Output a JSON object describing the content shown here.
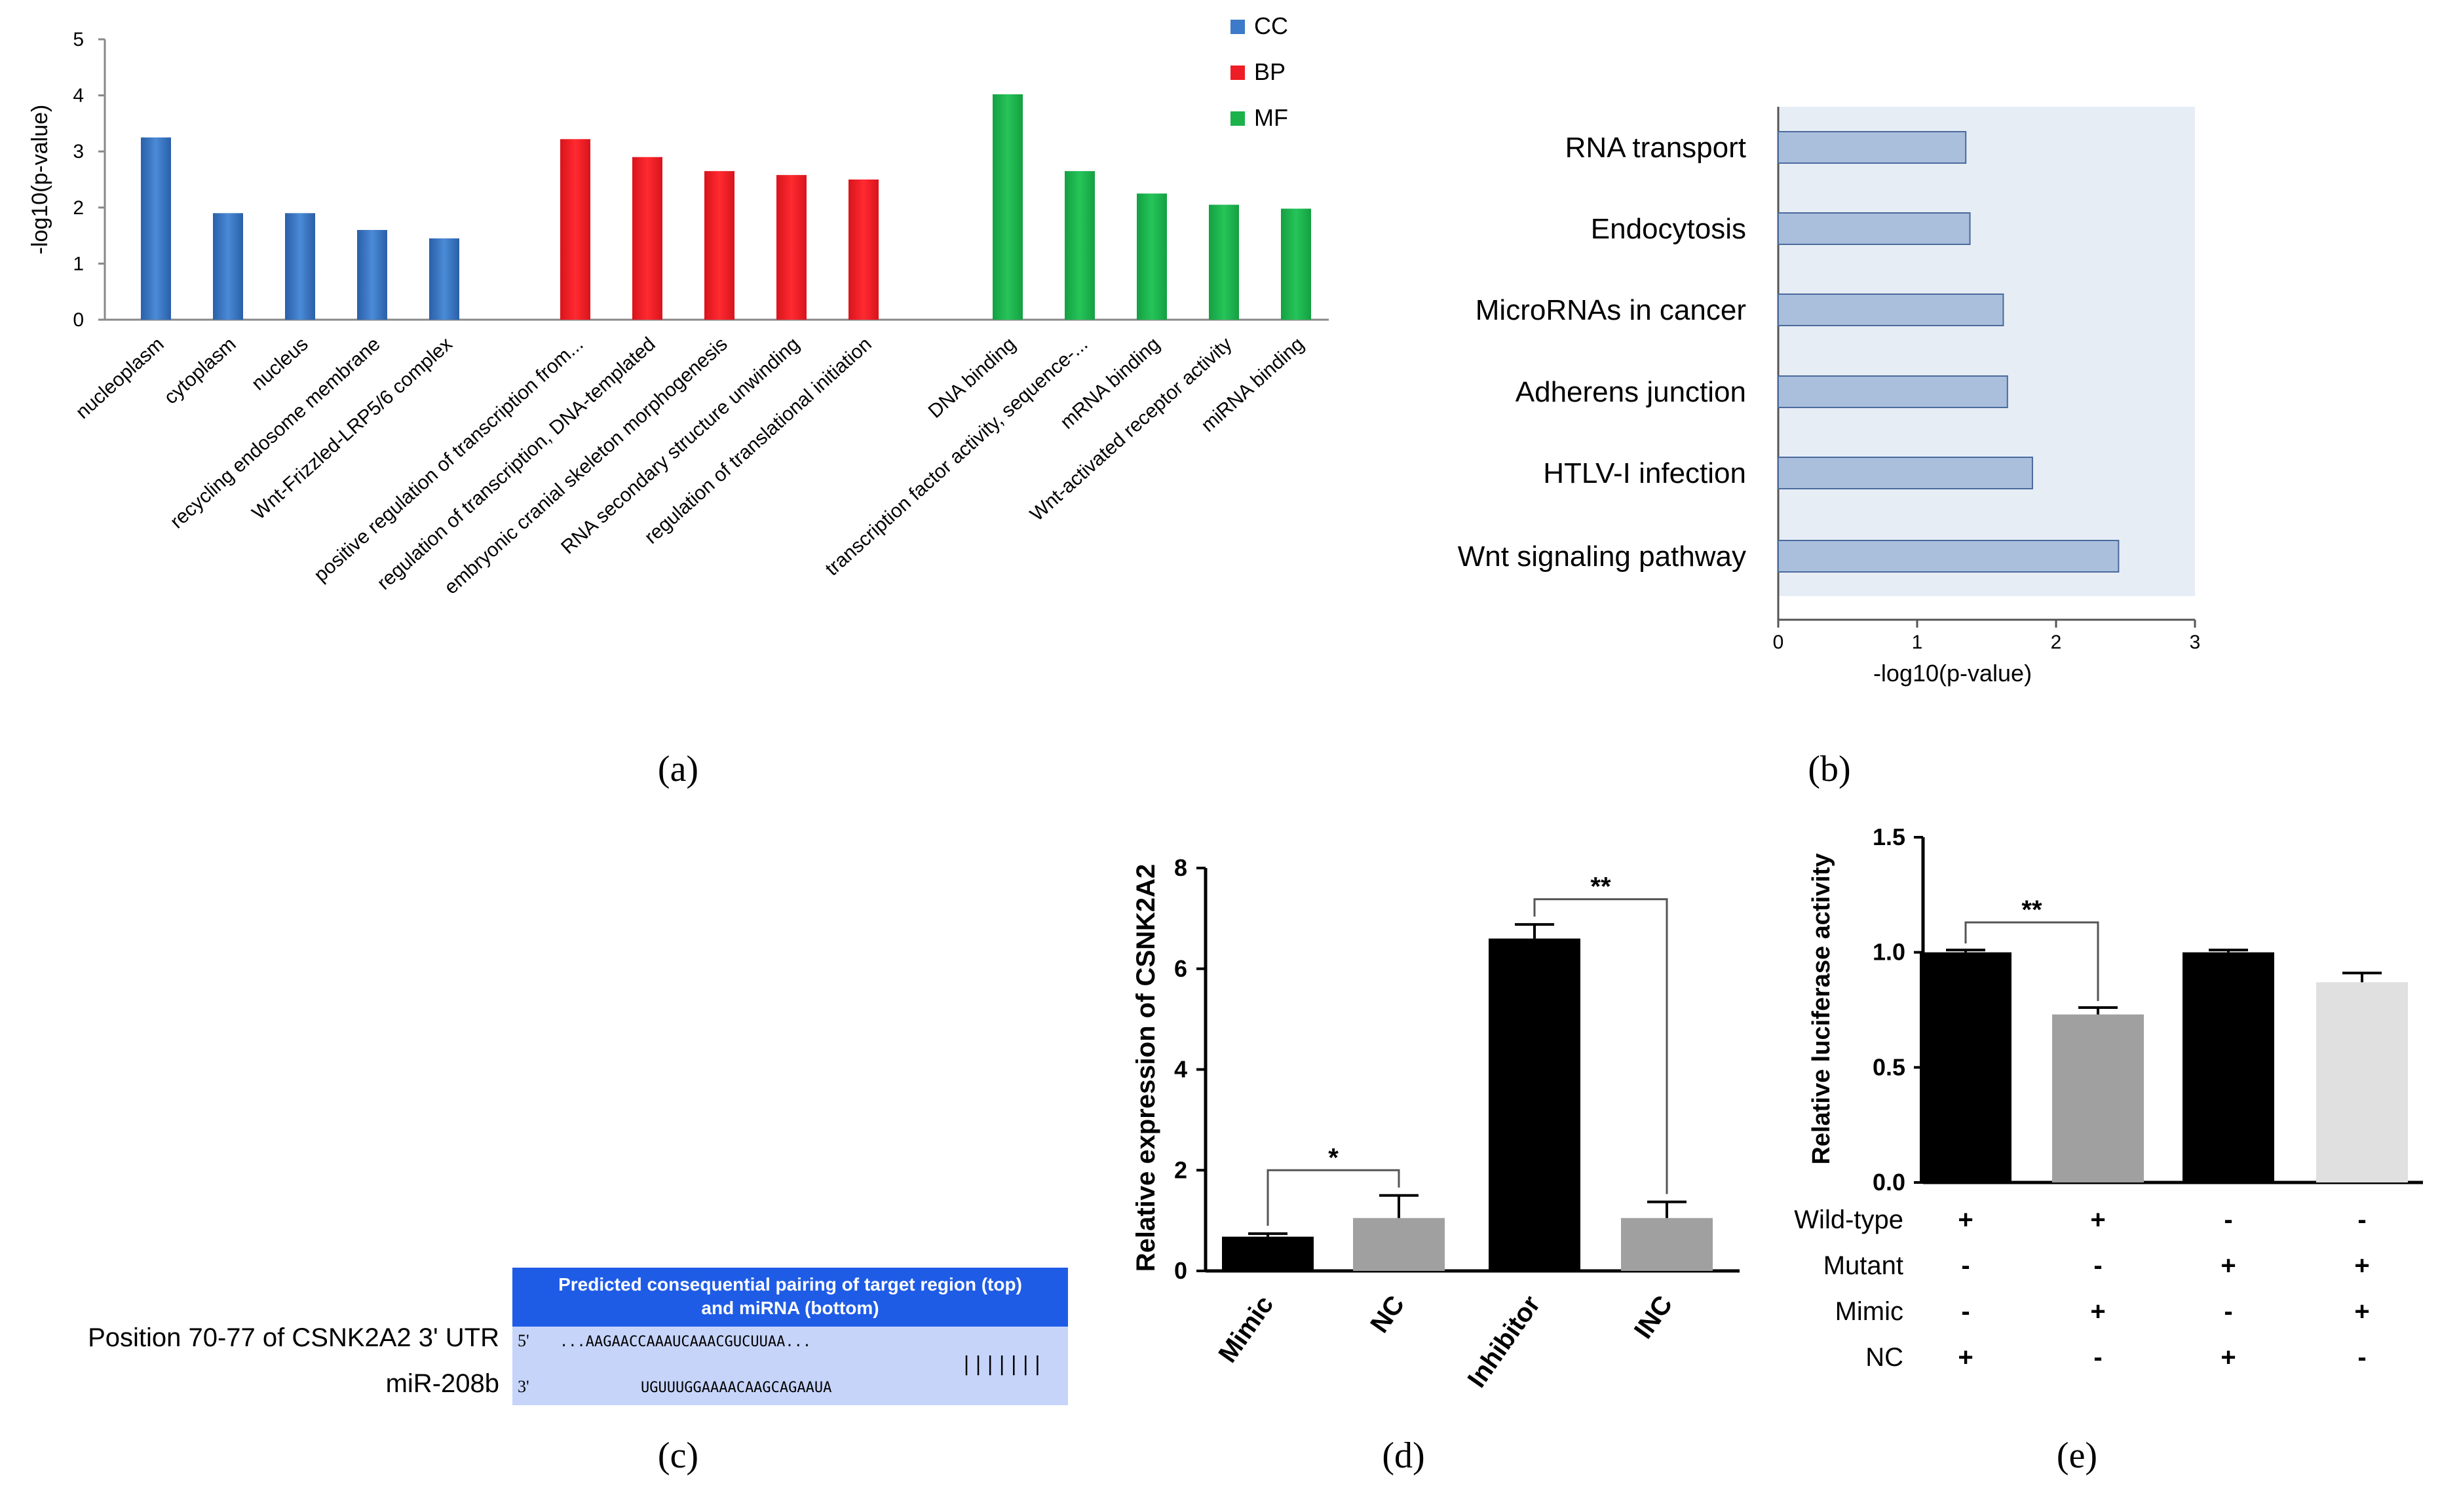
{
  "chart_data": [
    {
      "panel": "(a)",
      "type": "bar",
      "title": "",
      "xlabel": "",
      "ylabel": "-log10(p-value)",
      "ylim": [
        0,
        5
      ],
      "yticks": [
        "0",
        "1",
        "2",
        "3",
        "4",
        "5"
      ],
      "legend": {
        "position": "top-right",
        "entries": [
          {
            "name": "CC",
            "color": "#3d7ac9"
          },
          {
            "name": "BP",
            "color": "#ee1c24"
          },
          {
            "name": "MF",
            "color": "#1bb24b"
          }
        ]
      },
      "groups": [
        {
          "name": "CC",
          "color": "#3d7ac9",
          "categories": [
            "nucleoplasm",
            "cytoplasm",
            "nucleus",
            "recycling endosome membrane",
            "Wnt-Frizzled-LRP5/6 complex"
          ],
          "values": [
            3.25,
            1.9,
            1.9,
            1.6,
            1.45
          ]
        },
        {
          "name": "BP",
          "color": "#ee1c24",
          "categories": [
            "positive regulation of transcription from...",
            "regulation of transcription, DNA-templated",
            "embryonic cranial skeleton morphogenesis",
            "RNA secondary structure unwinding",
            "regulation of translational  initiation"
          ],
          "values": [
            3.22,
            2.9,
            2.65,
            2.58,
            2.5
          ]
        },
        {
          "name": "MF",
          "color": "#1bb24b",
          "categories": [
            "DNA binding",
            "transcription factor activity, sequence-...",
            "mRNA binding",
            "Wnt-activated receptor activity",
            "miRNA binding"
          ],
          "values": [
            4.02,
            2.65,
            2.25,
            2.05,
            1.98
          ]
        }
      ],
      "caption": "(a)"
    },
    {
      "panel": "(b)",
      "type": "bar",
      "orientation": "horizontal",
      "xlabel": "-log10(p-value)",
      "xlim": [
        0,
        3
      ],
      "xticks": [
        "0",
        "1",
        "2",
        "3"
      ],
      "categories": [
        "RNA transport",
        "Endocytosis",
        "MicroRNAs in cancer",
        "Adherens junction",
        "HTLV-I infection",
        "Wnt signaling pathway"
      ],
      "values": [
        1.35,
        1.38,
        1.62,
        1.65,
        1.83,
        2.45
      ],
      "bar_color": "#aabfdc",
      "caption": "(b)"
    },
    {
      "panel": "(d)",
      "type": "bar",
      "ylabel": "Relative expression of CSNK2A2",
      "ylim": [
        0,
        8
      ],
      "yticks": [
        "0",
        "2",
        "4",
        "6",
        "8"
      ],
      "categories": [
        "Mimic",
        "NC",
        "Inhibitor",
        "INC"
      ],
      "values": [
        0.68,
        1.05,
        6.6,
        1.05
      ],
      "errors": [
        0.06,
        0.45,
        0.28,
        0.32
      ],
      "colors": [
        "#000000",
        "#a0a0a0",
        "#000000",
        "#a0a0a0"
      ],
      "significance": [
        {
          "pair": [
            0,
            1
          ],
          "label": "*"
        },
        {
          "pair": [
            2,
            3
          ],
          "label": "**"
        }
      ],
      "caption": "(d)"
    },
    {
      "panel": "(e)",
      "type": "bar",
      "ylabel": "Relative luciferase activity",
      "ylim": [
        0,
        1.5
      ],
      "yticks": [
        "0.0",
        "0.5",
        "1.0",
        "1.5"
      ],
      "values": [
        1.0,
        0.73,
        1.0,
        0.87
      ],
      "errors": [
        0.01,
        0.03,
        0.01,
        0.04
      ],
      "colors": [
        "#000000",
        "#a0a0a0",
        "#000000",
        "#e0e0e0"
      ],
      "significance": [
        {
          "pair": [
            0,
            1
          ],
          "label": "**"
        }
      ],
      "conditions": [
        {
          "label": "Wild-type",
          "marks": [
            "+",
            "+",
            "-",
            "-"
          ]
        },
        {
          "label": "Mutant",
          "marks": [
            "-",
            "-",
            "+",
            "+"
          ]
        },
        {
          "label": "Mimic",
          "marks": [
            "-",
            "+",
            "-",
            "+"
          ]
        },
        {
          "label": "NC",
          "marks": [
            "+",
            "-",
            "+",
            "-"
          ]
        }
      ],
      "caption": "(e)"
    }
  ],
  "panel_c": {
    "header_line1": "Predicted consequential pairing of target region (top)",
    "header_line2": "and miRNA (bottom)",
    "row1_label": "Position 70-77 of CSNK2A2 3' UTR",
    "row1_prefix": "5'",
    "row1_seq": "...AAGAACCAAAUCAAACGUCUUAA...",
    "pairing": "|||||||",
    "row2_label": "miR-208b",
    "row2_prefix": "3'",
    "row2_seq": "UGUUUGGAAAACAAGCAGAAUA",
    "caption": "(c)"
  }
}
